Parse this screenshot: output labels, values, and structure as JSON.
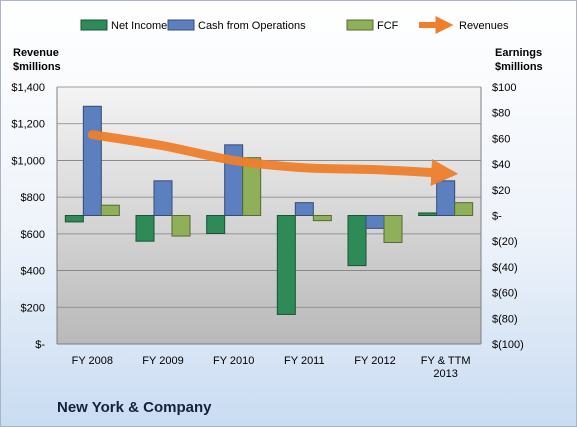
{
  "chart_data": {
    "type": "bar",
    "title": "New York & Company",
    "categories": [
      "FY 2008",
      "FY 2009",
      "FY 2010",
      "FY 2011",
      "FY 2012",
      "FY & TTM 2013"
    ],
    "left_axis": {
      "label_line1": "Revenue",
      "label_line2": "$millions",
      "ticks": [
        "$1,400",
        "$1,200",
        "$1,000",
        "$800",
        "$600",
        "$400",
        "$200",
        "$-"
      ],
      "range": [
        0,
        1400
      ]
    },
    "right_axis": {
      "label_line1": "Earnings",
      "label_line2": "$millions",
      "ticks": [
        "$100",
        "$80",
        "$60",
        "$40",
        "$20",
        "$-",
        "$(20)",
        "$(40)",
        "$(60)",
        "$(80)",
        "$(100)"
      ],
      "range": [
        -100,
        100
      ]
    },
    "series": [
      {
        "name": "Net Income",
        "axis": "right",
        "color": "#2e8b57",
        "values": [
          -5,
          -20,
          -14,
          -77,
          -39,
          2
        ]
      },
      {
        "name": "Cash from Operations",
        "axis": "right",
        "color": "#5b7fbf",
        "values": [
          85,
          27,
          55,
          10,
          -10,
          27
        ]
      },
      {
        "name": "FCF",
        "axis": "right",
        "color": "#8faf5a",
        "values": [
          8,
          -16,
          45,
          -4,
          -21,
          10
        ]
      },
      {
        "name": "Revenues",
        "axis": "left",
        "type": "line",
        "color": "#ee7f2d",
        "values": [
          1140,
          1080,
          1000,
          960,
          950,
          930
        ]
      }
    ],
    "grid": true,
    "legend_position": "top"
  }
}
